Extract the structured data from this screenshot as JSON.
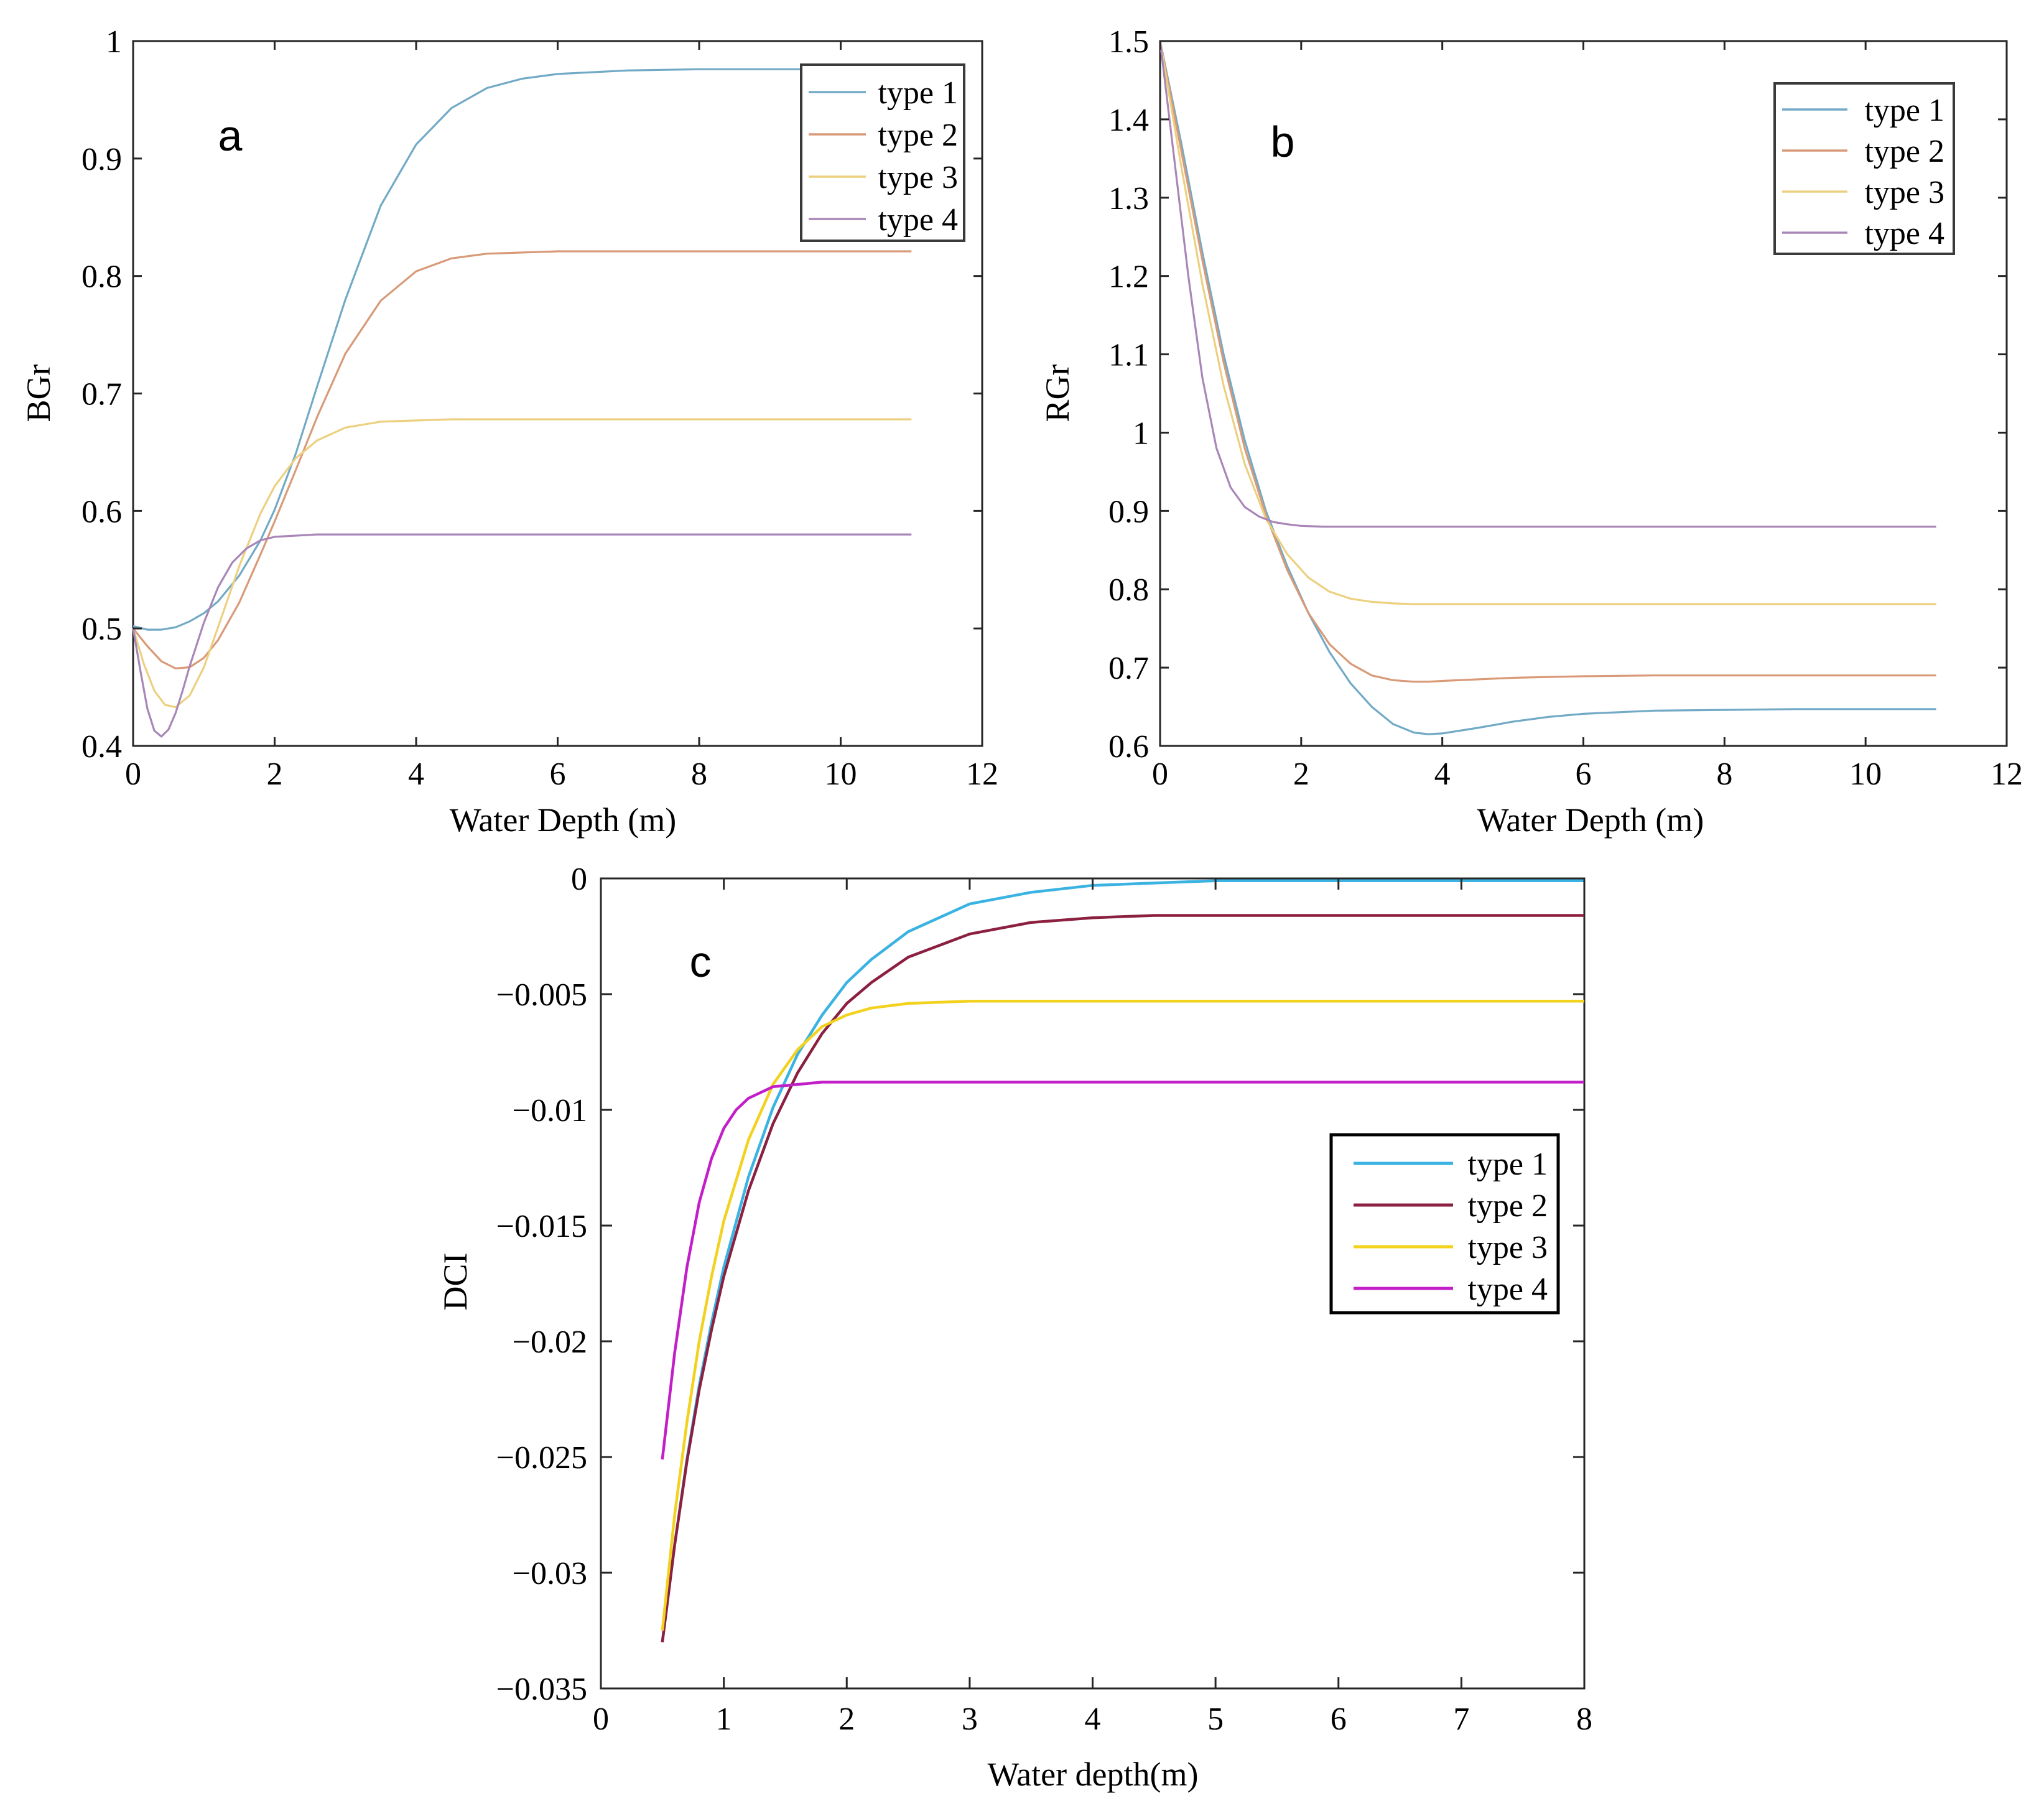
{
  "chart_data": [
    {
      "id": "a",
      "type": "line",
      "panel_label": "a",
      "xlabel": "Water Depth (m)",
      "ylabel": "BGr",
      "xlim": [
        0,
        12
      ],
      "ylim": [
        0.4,
        1
      ],
      "xticks": [
        0,
        2,
        4,
        6,
        8,
        10,
        12
      ],
      "xtick_labels": [
        "0",
        "2",
        "4",
        "6",
        "8",
        "10",
        "12"
      ],
      "yticks": [
        0.4,
        0.5,
        0.6,
        0.7,
        0.8,
        0.9,
        1
      ],
      "ytick_labels": [
        "0.4",
        "0.5",
        "0.6",
        "0.7",
        "0.8",
        "0.9",
        "1"
      ],
      "legend_position": "top-right",
      "series": [
        {
          "name": "type 1",
          "color": "#72aac6",
          "x": [
            0,
            0.2,
            0.4,
            0.6,
            0.8,
            1.0,
            1.2,
            1.5,
            1.8,
            2.0,
            2.3,
            2.6,
            3.0,
            3.5,
            4.0,
            4.5,
            5.0,
            5.5,
            6.0,
            7.0,
            8.0,
            9.0,
            10.0,
            11.0
          ],
          "y": [
            0.502,
            0.499,
            0.499,
            0.501,
            0.506,
            0.513,
            0.523,
            0.545,
            0.575,
            0.601,
            0.649,
            0.706,
            0.78,
            0.86,
            0.912,
            0.943,
            0.96,
            0.968,
            0.972,
            0.975,
            0.976,
            0.976,
            0.976,
            0.976
          ]
        },
        {
          "name": "type 2",
          "color": "#d89a78",
          "x": [
            0,
            0.2,
            0.4,
            0.6,
            0.8,
            1.0,
            1.2,
            1.5,
            1.8,
            2.0,
            2.3,
            2.6,
            3.0,
            3.5,
            4.0,
            4.5,
            5.0,
            5.5,
            6.0,
            7.0,
            8.0,
            9.0,
            10.0,
            11.0
          ],
          "y": [
            0.5,
            0.485,
            0.472,
            0.466,
            0.467,
            0.475,
            0.49,
            0.522,
            0.563,
            0.591,
            0.635,
            0.68,
            0.734,
            0.779,
            0.804,
            0.815,
            0.819,
            0.82,
            0.821,
            0.821,
            0.821,
            0.821,
            0.821,
            0.821
          ]
        },
        {
          "name": "type 3",
          "color": "#ecd080",
          "x": [
            0,
            0.15,
            0.3,
            0.45,
            0.6,
            0.8,
            1.0,
            1.2,
            1.5,
            1.8,
            2.0,
            2.3,
            2.6,
            3.0,
            3.5,
            4.0,
            4.5,
            5.0,
            6.0,
            7.0,
            8.0,
            9.0,
            10.0,
            11.0
          ],
          "y": [
            0.5,
            0.47,
            0.447,
            0.435,
            0.433,
            0.443,
            0.467,
            0.501,
            0.553,
            0.598,
            0.621,
            0.645,
            0.66,
            0.671,
            0.676,
            0.677,
            0.678,
            0.678,
            0.678,
            0.678,
            0.678,
            0.678,
            0.678,
            0.678
          ]
        },
        {
          "name": "type 4",
          "color": "#a886b8",
          "x": [
            0,
            0.1,
            0.2,
            0.3,
            0.4,
            0.5,
            0.6,
            0.7,
            0.8,
            1.0,
            1.2,
            1.4,
            1.6,
            1.8,
            2.0,
            2.3,
            2.6,
            3.0,
            4.0,
            5.0,
            6.0,
            8.0,
            10.0,
            11.0
          ],
          "y": [
            0.5,
            0.465,
            0.432,
            0.413,
            0.408,
            0.414,
            0.428,
            0.447,
            0.468,
            0.505,
            0.535,
            0.556,
            0.568,
            0.575,
            0.578,
            0.579,
            0.58,
            0.58,
            0.58,
            0.58,
            0.58,
            0.58,
            0.58,
            0.58
          ]
        }
      ]
    },
    {
      "id": "b",
      "type": "line",
      "panel_label": "b",
      "xlabel": "Water Depth (m)",
      "ylabel": "RGr",
      "xlim": [
        0,
        12
      ],
      "ylim": [
        0.6,
        1.5
      ],
      "xticks": [
        0,
        2,
        4,
        6,
        8,
        10,
        12
      ],
      "xtick_labels": [
        "0",
        "2",
        "4",
        "6",
        "8",
        "10",
        "12"
      ],
      "yticks": [
        0.6,
        0.7,
        0.8,
        0.9,
        1.0,
        1.1,
        1.2,
        1.3,
        1.4,
        1.5
      ],
      "ytick_labels": [
        "0.6",
        "0.7",
        "0.8",
        "0.9",
        "1",
        "1.1",
        "1.2",
        "1.3",
        "1.4",
        "1.5"
      ],
      "legend_position": "top-right",
      "series": [
        {
          "name": "type 1",
          "color": "#72aac6",
          "x": [
            0,
            0.3,
            0.6,
            0.9,
            1.2,
            1.5,
            1.8,
            2.1,
            2.4,
            2.7,
            3.0,
            3.3,
            3.6,
            3.8,
            4.0,
            4.5,
            5.0,
            5.5,
            6.0,
            7.0,
            8.0,
            9.0,
            10.0,
            11.0
          ],
          "y": [
            1.5,
            1.37,
            1.23,
            1.1,
            0.99,
            0.9,
            0.83,
            0.77,
            0.72,
            0.68,
            0.65,
            0.628,
            0.617,
            0.615,
            0.616,
            0.623,
            0.631,
            0.637,
            0.641,
            0.645,
            0.646,
            0.647,
            0.647,
            0.647
          ]
        },
        {
          "name": "type 2",
          "color": "#d89a78",
          "x": [
            0,
            0.3,
            0.6,
            0.9,
            1.2,
            1.5,
            1.8,
            2.1,
            2.4,
            2.7,
            3.0,
            3.3,
            3.6,
            3.8,
            4.0,
            4.5,
            5.0,
            5.5,
            6.0,
            7.0,
            8.0,
            9.0,
            10.0,
            11.0
          ],
          "y": [
            1.5,
            1.36,
            1.22,
            1.09,
            0.98,
            0.895,
            0.825,
            0.77,
            0.73,
            0.705,
            0.69,
            0.684,
            0.682,
            0.682,
            0.683,
            0.685,
            0.687,
            0.688,
            0.689,
            0.69,
            0.69,
            0.69,
            0.69,
            0.69
          ]
        },
        {
          "name": "type 3",
          "color": "#ecd080",
          "x": [
            0,
            0.3,
            0.6,
            0.9,
            1.2,
            1.5,
            1.8,
            2.1,
            2.4,
            2.7,
            3.0,
            3.3,
            3.6,
            4.0,
            4.5,
            5.0,
            5.5,
            6.0,
            7.0,
            8.0,
            9.0,
            10.0,
            11.0
          ],
          "y": [
            1.5,
            1.34,
            1.19,
            1.06,
            0.96,
            0.89,
            0.845,
            0.815,
            0.797,
            0.788,
            0.784,
            0.782,
            0.781,
            0.781,
            0.781,
            0.781,
            0.781,
            0.781,
            0.781,
            0.781,
            0.781,
            0.781,
            0.781
          ]
        },
        {
          "name": "type 4",
          "color": "#a886b8",
          "x": [
            0,
            0.2,
            0.4,
            0.6,
            0.8,
            1.0,
            1.2,
            1.4,
            1.6,
            1.8,
            2.0,
            2.3,
            2.6,
            3.0,
            4.0,
            5.0,
            6.0,
            7.0,
            8.0,
            9.0,
            10.0,
            11.0
          ],
          "y": [
            1.5,
            1.35,
            1.2,
            1.07,
            0.98,
            0.93,
            0.905,
            0.893,
            0.886,
            0.883,
            0.881,
            0.88,
            0.88,
            0.88,
            0.88,
            0.88,
            0.88,
            0.88,
            0.88,
            0.88,
            0.88,
            0.88
          ]
        }
      ]
    },
    {
      "id": "c",
      "type": "line",
      "panel_label": "c",
      "xlabel": "Water depth(m)",
      "ylabel": "DCI",
      "xlim": [
        0,
        8
      ],
      "ylim": [
        -0.035,
        0
      ],
      "xticks": [
        0,
        1,
        2,
        3,
        4,
        5,
        6,
        7,
        8
      ],
      "xtick_labels": [
        "0",
        "1",
        "2",
        "3",
        "4",
        "5",
        "6",
        "7",
        "8"
      ],
      "yticks": [
        -0.035,
        -0.03,
        -0.025,
        -0.02,
        -0.015,
        -0.01,
        -0.005,
        0
      ],
      "ytick_labels": [
        "−0.035",
        "−0.03",
        "−0.025",
        "−0.02",
        "−0.015",
        "−0.01",
        "−0.005",
        "0"
      ],
      "legend_position": "middle-right",
      "series": [
        {
          "name": "type 1",
          "color": "#3bb3e2",
          "x": [
            0.5,
            0.6,
            0.7,
            0.8,
            0.9,
            1.0,
            1.2,
            1.4,
            1.6,
            1.8,
            2.0,
            2.2,
            2.5,
            3.0,
            3.5,
            4.0,
            4.5,
            5.0,
            6.0,
            7.0,
            8.0
          ],
          "y": [
            -0.033,
            -0.0288,
            -0.0251,
            -0.0219,
            -0.0192,
            -0.0168,
            -0.0129,
            -0.0099,
            -0.0076,
            -0.0059,
            -0.0045,
            -0.0035,
            -0.0023,
            -0.0011,
            -0.0006,
            -0.0003,
            -0.0002,
            -0.0001,
            -0.0001,
            -0.0001,
            -0.0001
          ]
        },
        {
          "name": "type 2",
          "color": "#8b2040",
          "x": [
            0.5,
            0.6,
            0.7,
            0.8,
            0.9,
            1.0,
            1.2,
            1.4,
            1.6,
            1.8,
            2.0,
            2.2,
            2.5,
            3.0,
            3.5,
            4.0,
            4.5,
            5.0,
            6.0,
            7.0,
            8.0
          ],
          "y": [
            -0.033,
            -0.0288,
            -0.0252,
            -0.0221,
            -0.0195,
            -0.0172,
            -0.0135,
            -0.0106,
            -0.0084,
            -0.0067,
            -0.0054,
            -0.0045,
            -0.0034,
            -0.0024,
            -0.0019,
            -0.0017,
            -0.0016,
            -0.0016,
            -0.0016,
            -0.0016,
            -0.0016
          ]
        },
        {
          "name": "type 3",
          "color": "#f2d21e",
          "x": [
            0.5,
            0.6,
            0.7,
            0.8,
            0.9,
            1.0,
            1.2,
            1.4,
            1.6,
            1.8,
            2.0,
            2.2,
            2.5,
            3.0,
            3.5,
            4.0,
            5.0,
            6.0,
            7.0,
            8.0
          ],
          "y": [
            -0.0325,
            -0.0275,
            -0.0235,
            -0.02,
            -0.0172,
            -0.0148,
            -0.0113,
            -0.0089,
            -0.0074,
            -0.0064,
            -0.0059,
            -0.0056,
            -0.0054,
            -0.0053,
            -0.0053,
            -0.0053,
            -0.0053,
            -0.0053,
            -0.0053,
            -0.0053
          ]
        },
        {
          "name": "type 4",
          "color": "#c21fc8",
          "x": [
            0.5,
            0.6,
            0.7,
            0.8,
            0.9,
            1.0,
            1.1,
            1.2,
            1.4,
            1.6,
            1.8,
            2.0,
            2.5,
            3.0,
            4.0,
            5.0,
            6.0,
            7.0,
            8.0
          ],
          "y": [
            -0.0251,
            -0.0205,
            -0.0168,
            -0.014,
            -0.0121,
            -0.0108,
            -0.01,
            -0.0095,
            -0.009,
            -0.0089,
            -0.0088,
            -0.0088,
            -0.0088,
            -0.0088,
            -0.0088,
            -0.0088,
            -0.0088,
            -0.0088,
            -0.0088
          ]
        }
      ]
    }
  ]
}
